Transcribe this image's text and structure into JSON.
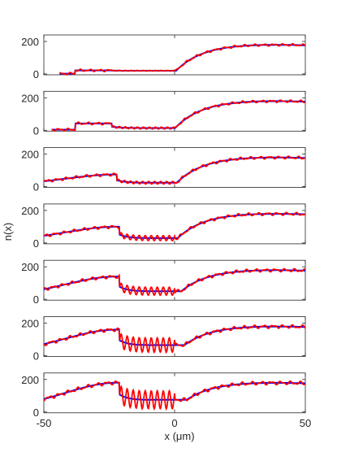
{
  "chart_data": {
    "type": "line",
    "layout": "stacked-panels",
    "panel_count": 7,
    "xlabel": "x (μm)",
    "ylabel": "n(x)",
    "xlim": [
      -50,
      50
    ],
    "ylim": [
      -5,
      240
    ],
    "x_ticks": [
      -50,
      0,
      50
    ],
    "x_tick_labels": [
      "-50",
      "0",
      "50"
    ],
    "y_ticks": [
      0,
      200
    ],
    "y_tick_labels": [
      "0",
      "200"
    ],
    "grid": false,
    "legend": "none",
    "series_styles": [
      {
        "role": "smooth-profile",
        "color": "#0000ff"
      },
      {
        "role": "oscillating-profile",
        "color": "#ff0000"
      }
    ],
    "panels": [
      {
        "index": 1,
        "x_start": -44,
        "plateau_value": 22,
        "hole_left": -24,
        "hole_right": 0,
        "hole_floor": 20,
        "osc_amplitude": 4,
        "noise": 9,
        "left_slope": 0
      },
      {
        "index": 2,
        "x_start": -47,
        "plateau_value": 42,
        "hole_left": -24,
        "hole_right": 0,
        "hole_floor": 14,
        "osc_amplitude": 10,
        "noise": 10,
        "left_slope": 0
      },
      {
        "index": 3,
        "x_start": -50,
        "plateau_value": 75,
        "hole_left": -22,
        "hole_right": 0,
        "hole_floor": 24,
        "osc_amplitude": 14,
        "noise": 11,
        "left_slope": 1
      },
      {
        "index": 4,
        "x_start": -50,
        "plateau_value": 100,
        "hole_left": -21,
        "hole_right": 0,
        "hole_floor": 30,
        "osc_amplitude": 28,
        "noise": 12,
        "left_slope": 1
      },
      {
        "index": 5,
        "x_start": -50,
        "plateau_value": 140,
        "hole_left": -21,
        "hole_right": 0,
        "hole_floor": 50,
        "osc_amplitude": 45,
        "noise": 13,
        "left_slope": 1
      },
      {
        "index": 6,
        "x_start": -50,
        "plateau_value": 160,
        "hole_left": -21,
        "hole_right": 0,
        "hole_floor": 65,
        "osc_amplitude": 80,
        "noise": 14,
        "left_slope": 1
      },
      {
        "index": 7,
        "x_start": -50,
        "plateau_value": 180,
        "hole_left": -21,
        "hole_right": 0,
        "hole_floor": 75,
        "osc_amplitude": 100,
        "noise": 15,
        "left_slope": 1
      }
    ]
  }
}
